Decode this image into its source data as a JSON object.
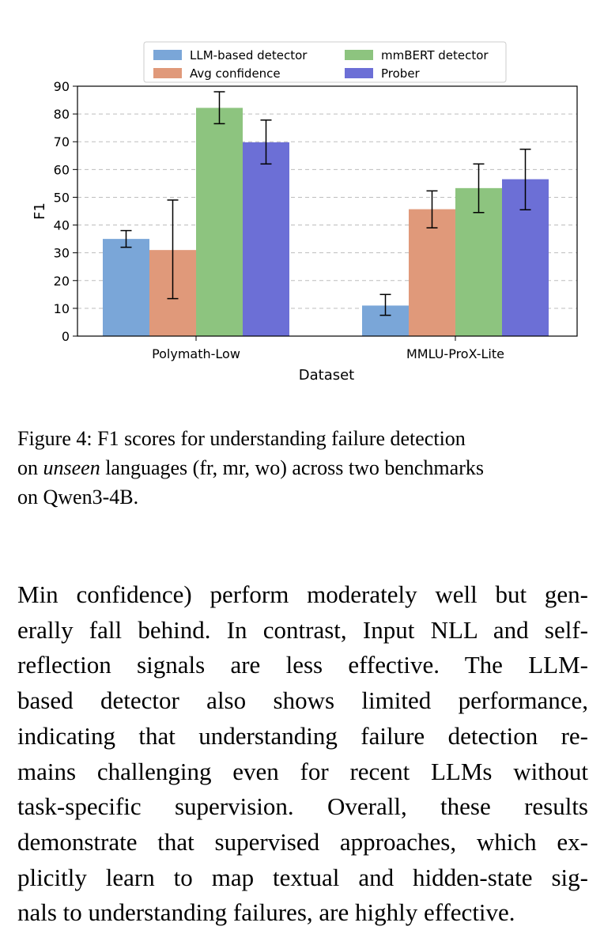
{
  "chart_data": {
    "type": "bar",
    "title": "",
    "xlabel": "Dataset",
    "ylabel": "F1",
    "ylim": [
      0,
      90
    ],
    "yticks": [
      0,
      10,
      20,
      30,
      40,
      50,
      60,
      70,
      80,
      90
    ],
    "grid": true,
    "legend_position": "top-center",
    "categories": [
      "Polymath-Low",
      "MMLU-ProX-Lite"
    ],
    "series": [
      {
        "name": "LLM-based detector",
        "color": "#7aa6d8",
        "values": [
          35,
          11
        ],
        "err_low": [
          32,
          7.5
        ],
        "err_high": [
          38,
          15
        ]
      },
      {
        "name": "Avg confidence",
        "color": "#e0997a",
        "values": [
          31,
          45.7
        ],
        "err_low": [
          13.5,
          39
        ],
        "err_high": [
          49,
          52.3
        ]
      },
      {
        "name": "mmBERT detector",
        "color": "#8dc47f",
        "values": [
          82.2,
          53.3
        ],
        "err_low": [
          76.5,
          44.5
        ],
        "err_high": [
          88,
          62
        ]
      },
      {
        "name": "Prober",
        "color": "#6c6fd6",
        "values": [
          69.8,
          56.5
        ],
        "err_low": [
          62,
          45.5
        ],
        "err_high": [
          77.8,
          67.3
        ]
      }
    ]
  },
  "caption": {
    "line1": "Figure 4: F1 scores for understanding failure detection",
    "line2_pre": "on ",
    "line2_em": "unseen",
    "line2_post": " languages (fr, mr, wo) across two benchmarks",
    "line3": "on Qwen3-4B."
  },
  "body": {
    "lines": [
      "Min confidence) perform moderately well but gen-",
      "erally fall behind. In contrast, Input NLL and self-",
      "reflection signals are less effective.  The LLM-",
      "based detector also shows limited performance,",
      "indicating that understanding failure detection re-",
      "mains challenging even for recent LLMs without",
      "task-specific supervision.  Overall, these results",
      "demonstrate that supervised approaches, which ex-",
      "plicitly learn to map textual and hidden-state sig-",
      "nals to understanding failures, are highly effective."
    ]
  }
}
